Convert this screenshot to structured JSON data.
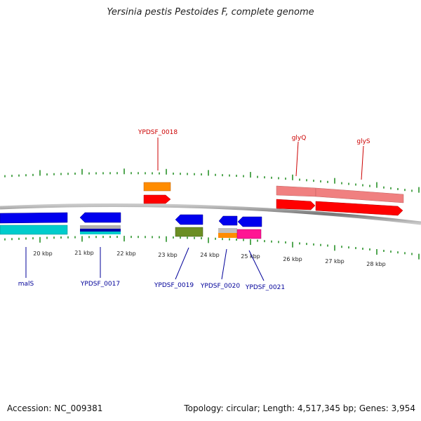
{
  "title": "Yersinia pestis Pestoides F, complete genome",
  "footer": {
    "accession": "Accession: NC_009381",
    "summary": "Topology: circular; Length: 4,517,345 bp; Genes: 3,954"
  },
  "scale_labels": [
    "20 kbp",
    "21 kbp",
    "22 kbp",
    "23 kbp",
    "24 kbp",
    "25 kbp",
    "26 kbp",
    "27 kbp",
    "28 kbp"
  ],
  "genes_top": [
    {
      "name": "YPDSF_0018",
      "color": "#cc0000"
    },
    {
      "name": "glyQ",
      "color": "#cc0000"
    },
    {
      "name": "glyS",
      "color": "#cc0000"
    }
  ],
  "genes_bottom": [
    {
      "name": "malS",
      "color": "#000099"
    },
    {
      "name": "YPDSF_0017",
      "color": "#000099"
    },
    {
      "name": "YPDSF_0019",
      "color": "#000099"
    },
    {
      "name": "YPDSF_0020",
      "color": "#000099"
    },
    {
      "name": "YPDSF_0021",
      "color": "#000099"
    }
  ],
  "colors": {
    "backbone": "#8a8a8a",
    "tick": "#1a8a1a",
    "forward_cds": "#ff0000",
    "reverse_cds": "#0000ee",
    "forward_rna": "#ff8c00",
    "cyan": "#00cccc",
    "olive": "#6b8e23",
    "magenta": "#ff1493",
    "pink": "#f08080"
  }
}
